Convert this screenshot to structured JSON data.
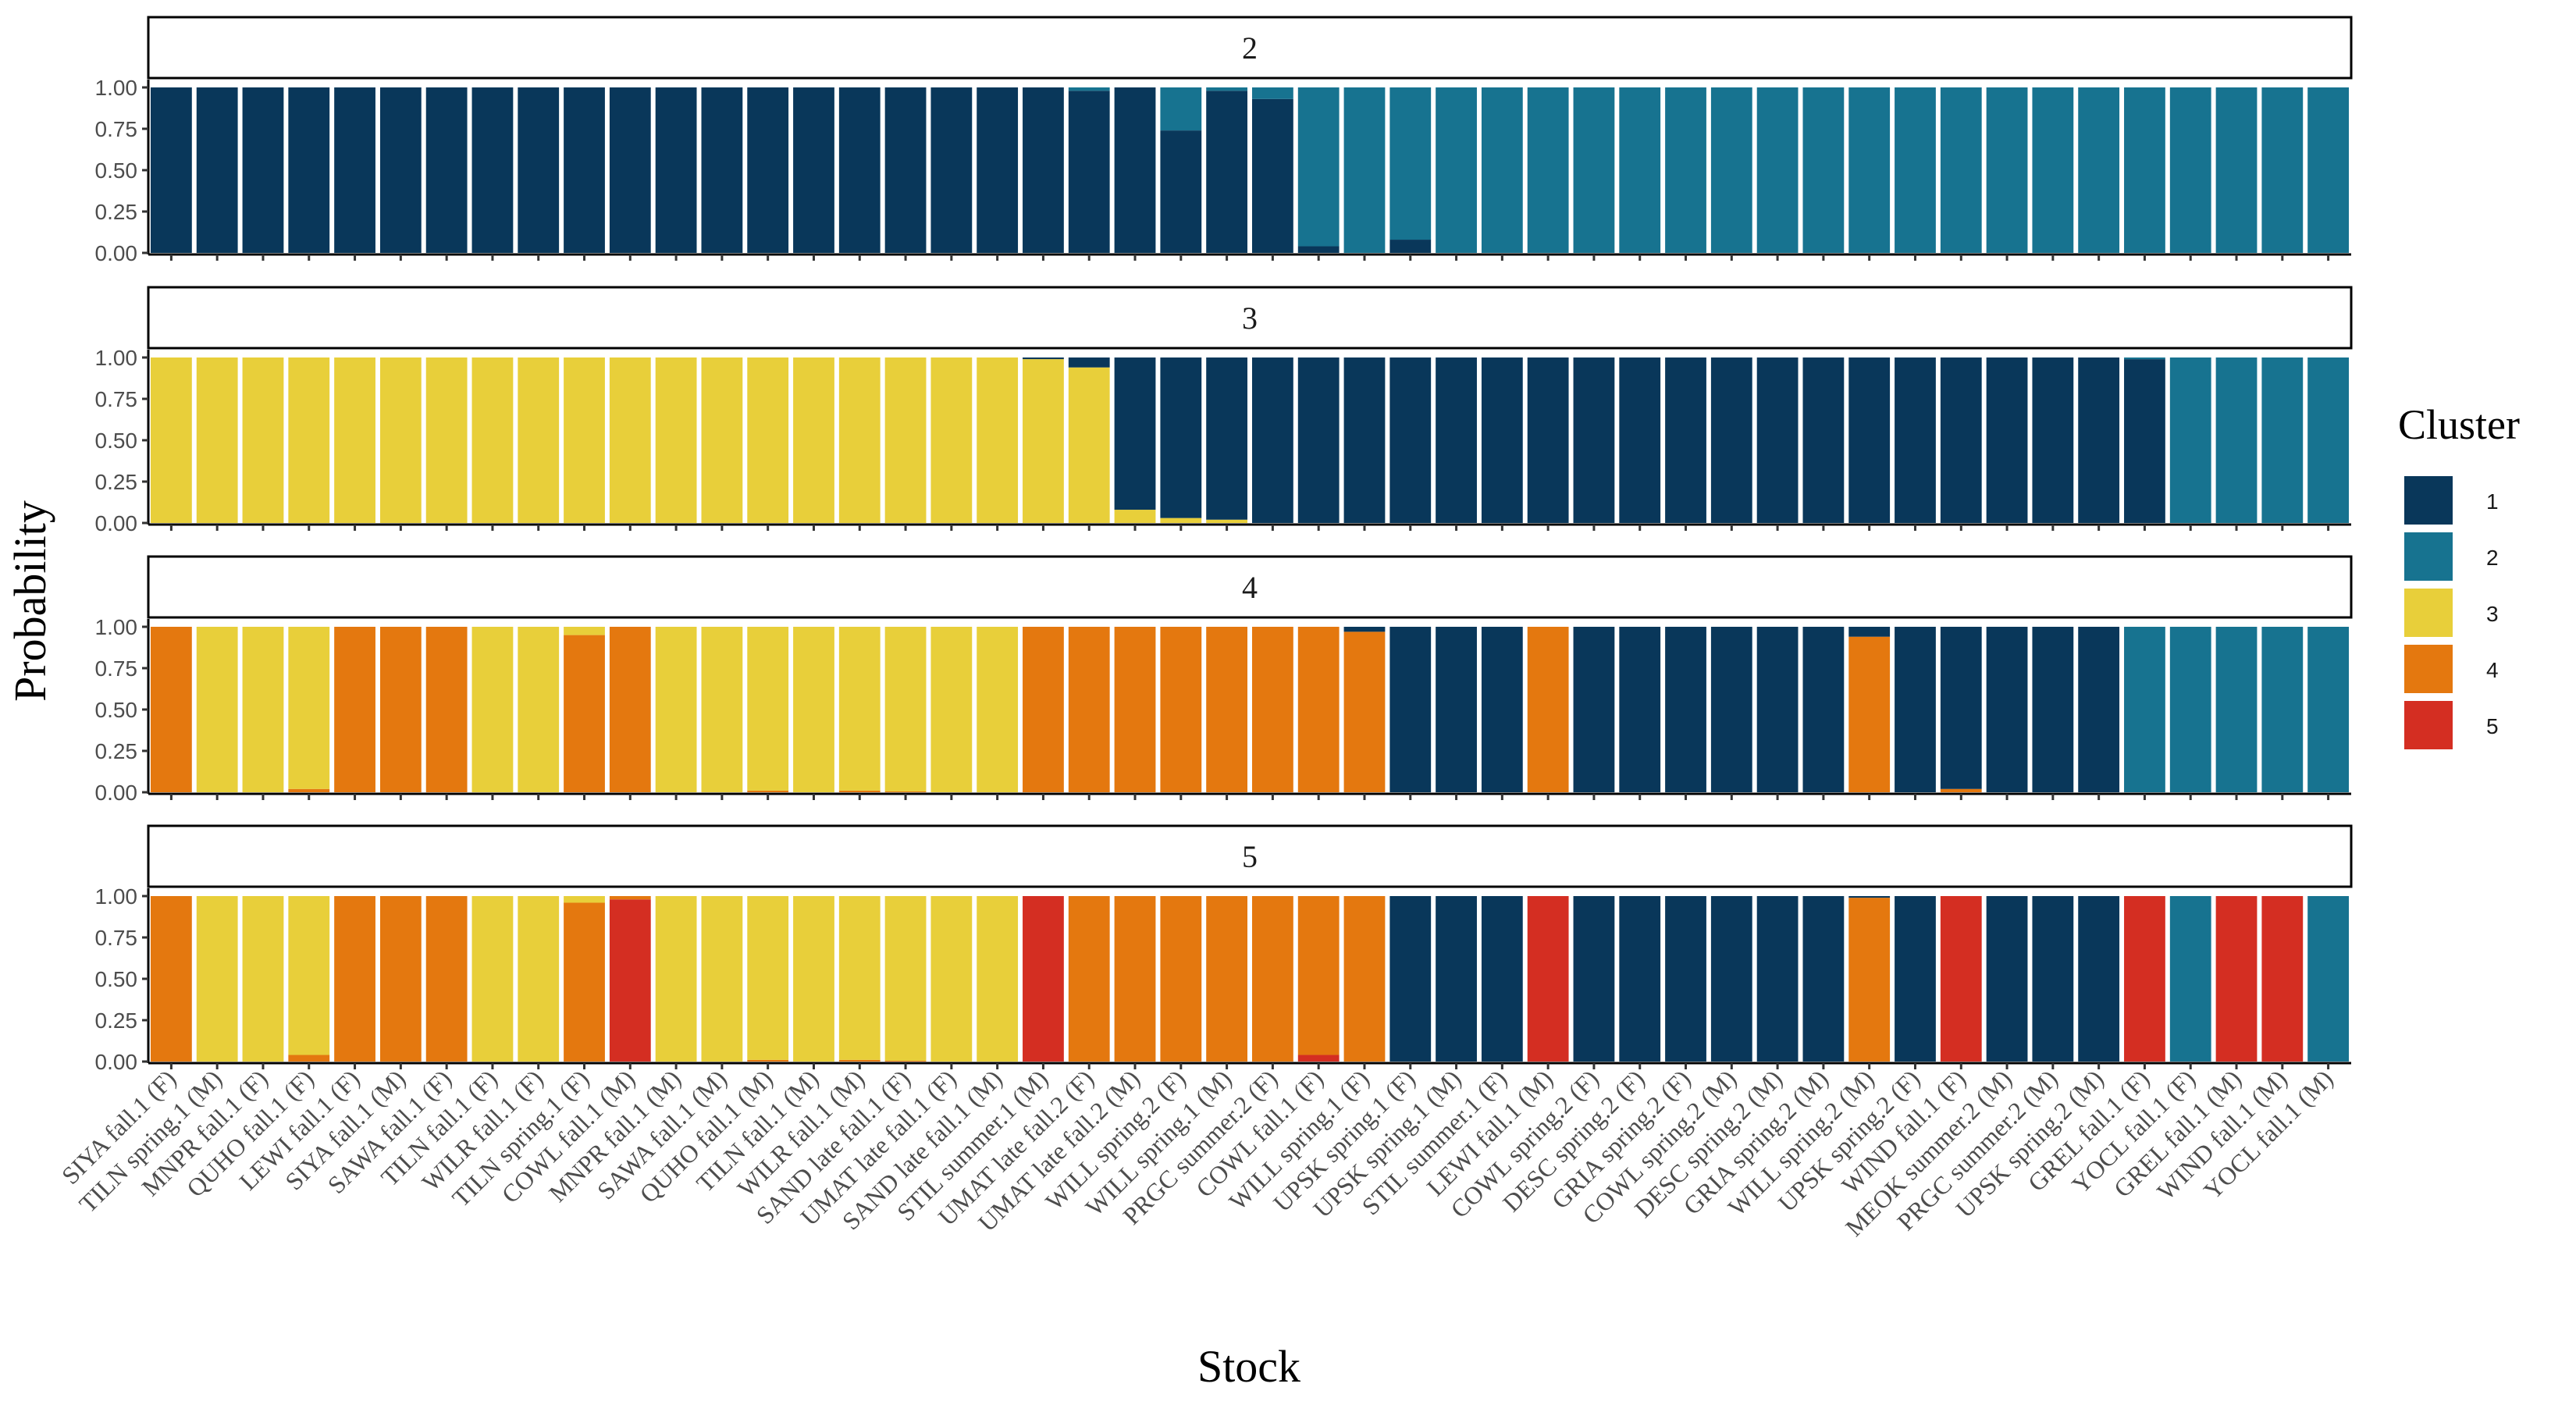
{
  "chart_data": {
    "type": "bar",
    "stacked": true,
    "xlabel": "Stock",
    "ylabel": "Probability",
    "ylim": [
      0,
      1
    ],
    "yticks": [
      "0.00",
      "0.25",
      "0.50",
      "0.75",
      "1.00"
    ],
    "legend": {
      "title": "Cluster",
      "placement": "right",
      "items": [
        {
          "label": "1",
          "color": "#09375a"
        },
        {
          "label": "2",
          "color": "#177390"
        },
        {
          "label": "3",
          "color": "#e8cf3a"
        },
        {
          "label": "4",
          "color": "#e4780f"
        },
        {
          "label": "5",
          "color": "#d42e22"
        }
      ]
    },
    "categories": [
      "SIYA fall.1 (F)",
      "TILN spring.1 (M)",
      "MNPR fall.1 (F)",
      "QUHO fall.1 (F)",
      "LEWI fall.1 (F)",
      "SIYA fall.1 (M)",
      "SAWA fall.1 (F)",
      "TILN fall.1 (F)",
      "WILR fall.1 (F)",
      "TILN spring.1 (F)",
      "COWL fall.1 (M)",
      "MNPR fall.1 (M)",
      "SAWA fall.1 (M)",
      "QUHO fall.1 (M)",
      "TILN fall.1 (M)",
      "WILR fall.1 (M)",
      "SAND late fall.1 (F)",
      "UMAT late fall.1 (F)",
      "SAND late fall.1 (M)",
      "STIL summer.1 (M)",
      "UMAT late fall.2 (F)",
      "UMAT late fall.2 (M)",
      "WILL spring.2 (F)",
      "WILL spring.1 (M)",
      "PRGC summer.2 (F)",
      "COWL fall.1 (F)",
      "WILL spring.1 (F)",
      "UPSK spring.1 (F)",
      "UPSK spring.1 (M)",
      "STIL summer.1 (F)",
      "LEWI fall.1 (M)",
      "COWL spring.2 (F)",
      "DESC spring.2 (F)",
      "GRIA spring.2 (F)",
      "COWL spring.2 (M)",
      "DESC spring.2 (M)",
      "GRIA spring.2 (M)",
      "WILL spring.2 (M)",
      "UPSK spring.2 (F)",
      "WIND fall.1 (F)",
      "MEOK summer.2 (M)",
      "PRGC summer.2 (M)",
      "UPSK spring.2 (M)",
      "GREL fall.1 (F)",
      "YOCL fall.1 (F)",
      "GREL fall.1 (M)",
      "WIND fall.1 (M)",
      "YOCL fall.1 (M)"
    ],
    "panels": [
      {
        "label": "2",
        "series": [
          {
            "name": "1",
            "values": [
              1,
              1,
              1,
              1,
              1,
              1,
              1,
              1,
              1,
              1,
              1,
              1,
              1,
              1,
              1,
              1,
              1,
              1,
              1,
              1,
              0.98,
              1,
              0.74,
              0.98,
              0.93,
              0.04,
              0,
              0.08,
              0,
              0,
              0,
              0,
              0,
              0,
              0,
              0,
              0,
              0,
              0,
              0,
              0,
              0,
              0,
              0,
              0,
              0,
              0,
              0
            ]
          },
          {
            "name": "2",
            "values": [
              0,
              0,
              0,
              0,
              0,
              0,
              0,
              0,
              0,
              0,
              0,
              0,
              0,
              0,
              0,
              0,
              0,
              0,
              0,
              0,
              0.02,
              0,
              0.26,
              0.02,
              0.07,
              0.96,
              1,
              0.92,
              1,
              1,
              1,
              1,
              1,
              1,
              1,
              1,
              1,
              1,
              1,
              1,
              1,
              1,
              1,
              1,
              1,
              1,
              1,
              1
            ]
          }
        ]
      },
      {
        "label": "3",
        "series": [
          {
            "name": "3",
            "values": [
              1,
              1,
              1,
              1,
              1,
              1,
              1,
              1,
              1,
              1,
              1,
              1,
              1,
              1,
              1,
              1,
              1,
              1,
              1,
              0.99,
              0.94,
              0.08,
              0.03,
              0.02,
              0,
              0,
              0,
              0,
              0,
              0,
              0,
              0,
              0,
              0,
              0,
              0,
              0,
              0,
              0,
              0,
              0,
              0,
              0,
              0,
              0,
              0,
              0,
              0
            ]
          },
          {
            "name": "1",
            "values": [
              0,
              0,
              0,
              0,
              0,
              0,
              0,
              0,
              0,
              0,
              0,
              0,
              0,
              0,
              0,
              0,
              0,
              0,
              0,
              0.01,
              0.06,
              0.92,
              0.97,
              0.98,
              1,
              1,
              1,
              1,
              1,
              1,
              1,
              1,
              1,
              1,
              1,
              1,
              1,
              1,
              1,
              1,
              1,
              1,
              1,
              0.99,
              0,
              0,
              0,
              0
            ]
          },
          {
            "name": "2",
            "values": [
              0,
              0,
              0,
              0,
              0,
              0,
              0,
              0,
              0,
              0,
              0,
              0,
              0,
              0,
              0,
              0,
              0,
              0,
              0,
              0,
              0,
              0,
              0,
              0,
              0,
              0,
              0,
              0,
              0,
              0,
              0,
              0,
              0,
              0,
              0,
              0,
              0,
              0,
              0,
              0,
              0,
              0,
              0,
              0.01,
              1,
              1,
              1,
              1
            ]
          }
        ]
      },
      {
        "label": "4",
        "series": [
          {
            "name": "4",
            "values": [
              1,
              0,
              0,
              0.02,
              1,
              1,
              1,
              0,
              0,
              0.95,
              1,
              0,
              0,
              0.01,
              0,
              0.01,
              0.005,
              0,
              0,
              1,
              1,
              1,
              1,
              1,
              1,
              1,
              0.97,
              0,
              0,
              0,
              1,
              0,
              0,
              0,
              0,
              0,
              0,
              0.94,
              0,
              0.02,
              0,
              0,
              0,
              0,
              0,
              0,
              0,
              0
            ]
          },
          {
            "name": "3",
            "values": [
              0,
              1,
              1,
              0.98,
              0,
              0,
              0,
              1,
              1,
              0.05,
              0,
              1,
              1,
              0.99,
              1,
              0.99,
              0.995,
              1,
              1,
              0,
              0,
              0,
              0,
              0,
              0,
              0,
              0,
              0,
              0,
              0,
              0,
              0,
              0,
              0,
              0,
              0,
              0,
              0,
              0,
              0,
              0,
              0,
              0,
              0,
              0,
              0,
              0,
              0
            ]
          },
          {
            "name": "1",
            "values": [
              0,
              0,
              0,
              0,
              0,
              0,
              0,
              0,
              0,
              0,
              0,
              0,
              0,
              0,
              0,
              0,
              0,
              0,
              0,
              0,
              0,
              0,
              0,
              0,
              0,
              0,
              0.03,
              1,
              1,
              1,
              0,
              1,
              1,
              1,
              1,
              1,
              1,
              0.06,
              1,
              0.98,
              1,
              1,
              1,
              0,
              0,
              0,
              0,
              0
            ]
          },
          {
            "name": "2",
            "values": [
              0,
              0,
              0,
              0,
              0,
              0,
              0,
              0,
              0,
              0,
              0,
              0,
              0,
              0,
              0,
              0,
              0,
              0,
              0,
              0,
              0,
              0,
              0,
              0,
              0,
              0,
              0,
              0,
              0,
              0,
              0,
              0,
              0,
              0,
              0,
              0,
              0,
              0,
              0,
              0,
              0,
              0,
              0,
              1,
              1,
              1,
              1,
              1
            ]
          }
        ]
      },
      {
        "label": "5",
        "series": [
          {
            "name": "5",
            "values": [
              0,
              0,
              0,
              0,
              0,
              0,
              0,
              0,
              0,
              0,
              0.98,
              0,
              0,
              0,
              0,
              0,
              0,
              0,
              0,
              1,
              0,
              0,
              0,
              0,
              0,
              0.04,
              0,
              0,
              0,
              0,
              1,
              0,
              0,
              0,
              0,
              0,
              0,
              0,
              0,
              1,
              0,
              0,
              0,
              1,
              0,
              1,
              1,
              0
            ]
          },
          {
            "name": "4",
            "values": [
              1,
              0,
              0,
              0.04,
              1,
              1,
              1,
              0,
              0,
              0.96,
              0.02,
              0,
              0,
              0.01,
              0,
              0.01,
              0.005,
              0,
              0,
              0,
              1,
              1,
              1,
              1,
              1,
              0.96,
              1,
              0,
              0,
              0,
              0,
              0,
              0,
              0,
              0,
              0,
              0,
              0.99,
              0,
              0,
              0,
              0,
              0,
              0,
              0,
              0,
              0,
              0
            ]
          },
          {
            "name": "3",
            "values": [
              0,
              1,
              1,
              0.96,
              0,
              0,
              0,
              1,
              1,
              0.04,
              0,
              1,
              1,
              0.99,
              1,
              0.99,
              0.995,
              1,
              1,
              0,
              0,
              0,
              0,
              0,
              0,
              0,
              0,
              0,
              0,
              0,
              0,
              0,
              0,
              0,
              0,
              0,
              0,
              0,
              0,
              0,
              0,
              0,
              0,
              0,
              0,
              0,
              0,
              0
            ]
          },
          {
            "name": "1",
            "values": [
              0,
              0,
              0,
              0,
              0,
              0,
              0,
              0,
              0,
              0,
              0,
              0,
              0,
              0,
              0,
              0,
              0,
              0,
              0,
              0,
              0,
              0,
              0,
              0,
              0,
              0,
              0,
              1,
              1,
              1,
              0,
              1,
              1,
              1,
              1,
              1,
              1,
              0.01,
              1,
              0,
              1,
              1,
              1,
              0,
              0,
              0,
              0,
              0
            ]
          },
          {
            "name": "2",
            "values": [
              0,
              0,
              0,
              0,
              0,
              0,
              0,
              0,
              0,
              0,
              0,
              0,
              0,
              0,
              0,
              0,
              0,
              0,
              0,
              0,
              0,
              0,
              0,
              0,
              0,
              0,
              0,
              0,
              0,
              0,
              0,
              0,
              0,
              0,
              0,
              0,
              0,
              0,
              0,
              0,
              0,
              0,
              0,
              0,
              1,
              0,
              0,
              1
            ]
          }
        ]
      }
    ]
  }
}
